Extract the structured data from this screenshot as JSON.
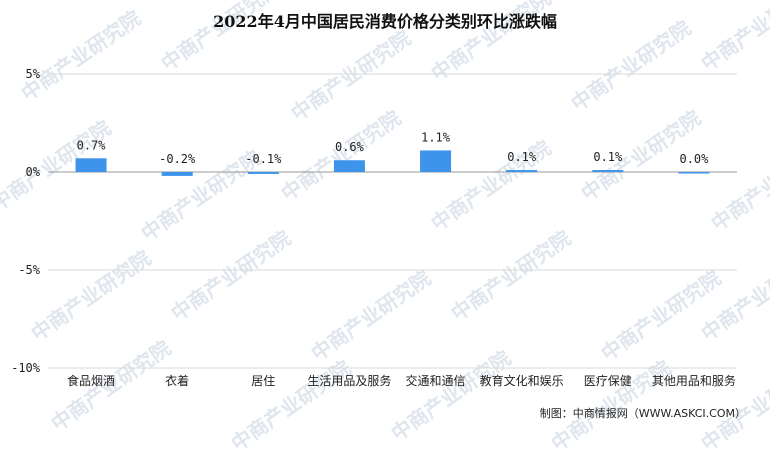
{
  "title": "2022年4月中国居民消费价格分类别环比涨跌幅",
  "source": "制图：中商情报网（WWW.ASKCI.COM）",
  "watermark": "中商产业研究院",
  "colors": {
    "bar": "#3d94ea",
    "grid": "#d9d9d9",
    "axis": "#999999"
  },
  "chart_data": {
    "type": "bar",
    "title": "2022年4月中国居民消费价格分类别环比涨跌幅",
    "categories": [
      "食品烟酒",
      "衣着",
      "居住",
      "生活用品及服务",
      "交通和通信",
      "教育文化和娱乐",
      "医疗保健",
      "其他用品和服务"
    ],
    "values": [
      0.7,
      -0.2,
      -0.1,
      0.6,
      1.1,
      0.1,
      0.1,
      0.0
    ],
    "data_labels": [
      "0.7%",
      "-0.2%",
      "-0.1%",
      "0.6%",
      "1.1%",
      "0.1%",
      "0.1%",
      "0.0%"
    ],
    "ylim": [
      -10,
      5
    ],
    "yticks": [
      5,
      0,
      -5,
      -10
    ],
    "ytick_labels": [
      "5%",
      "0%",
      "-5%",
      "-10%"
    ],
    "xlabel": "",
    "ylabel": "",
    "grid": true
  }
}
